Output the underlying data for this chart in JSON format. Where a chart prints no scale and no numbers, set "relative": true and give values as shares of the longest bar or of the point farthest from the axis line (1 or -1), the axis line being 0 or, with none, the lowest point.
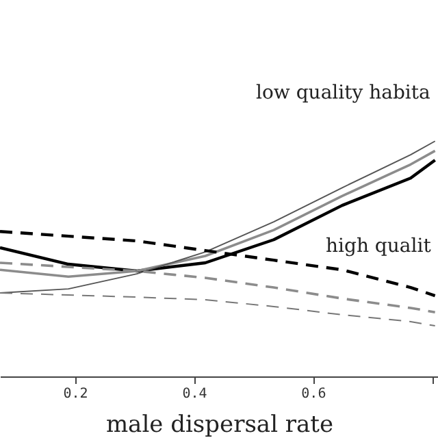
{
  "chart_data": {
    "type": "line",
    "relative": true,
    "xlabel": "male dispersal rate",
    "xlim": [
      0.074,
      0.81
    ],
    "xticks": [
      0.2,
      0.4,
      0.6,
      {
        "value": 0.8,
        "label": null
      }
    ],
    "grid": false,
    "marker": "none",
    "annotations": [
      "low quality habita",
      "high qualit"
    ],
    "series": [
      {
        "color": "#000000",
        "line_style": "solid",
        "x": [
          0.074,
          0.189,
          0.304,
          0.419,
          0.534,
          0.649,
          0.764,
          0.805
        ],
        "values": [
          0.547,
          0.477,
          0.448,
          0.483,
          0.581,
          0.727,
          0.843,
          0.919
        ]
      },
      {
        "color": "#8c8c8c",
        "line_style": "solid",
        "x": [
          0.074,
          0.189,
          0.304,
          0.419,
          0.534,
          0.649,
          0.764,
          0.805
        ],
        "values": [
          0.453,
          0.424,
          0.448,
          0.512,
          0.622,
          0.767,
          0.901,
          0.959
        ]
      },
      {
        "color": "#555555",
        "line_style": "solid",
        "x": [
          0.074,
          0.189,
          0.304,
          0.419,
          0.534,
          0.649,
          0.764,
          0.805
        ],
        "values": [
          0.355,
          0.372,
          0.436,
          0.529,
          0.657,
          0.802,
          0.942,
          1.0
        ]
      },
      {
        "color": "#000000",
        "line_style": "dashed",
        "x": [
          0.074,
          0.304,
          0.419,
          0.534,
          0.649,
          0.764,
          0.805
        ],
        "values": [
          0.616,
          0.576,
          0.535,
          0.494,
          0.453,
          0.378,
          0.343
        ]
      },
      {
        "color": "#8c8c8c",
        "line_style": "dashed",
        "x": [
          0.074,
          0.304,
          0.419,
          0.534,
          0.649,
          0.764,
          0.805
        ],
        "values": [
          0.483,
          0.448,
          0.419,
          0.378,
          0.331,
          0.291,
          0.273
        ]
      },
      {
        "color": "#777777",
        "line_style": "dashed",
        "x": [
          0.074,
          0.304,
          0.419,
          0.534,
          0.649,
          0.764,
          0.805
        ],
        "values": [
          0.355,
          0.337,
          0.326,
          0.297,
          0.262,
          0.233,
          0.215
        ]
      }
    ]
  }
}
